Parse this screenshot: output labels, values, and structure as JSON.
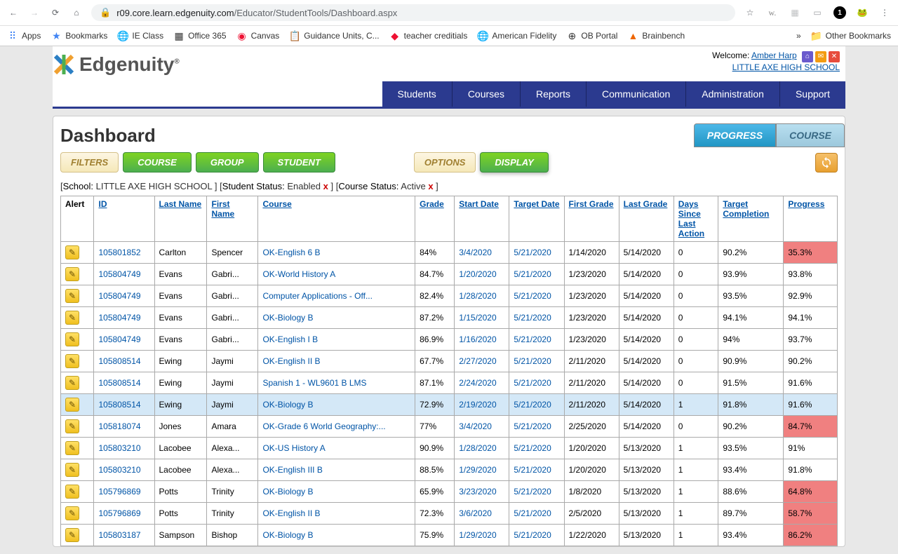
{
  "browser": {
    "url_host": "r09.core.learn.edgenuity.com",
    "url_path": "/Educator/StudentTools/Dashboard.aspx"
  },
  "bookmarks": [
    "Apps",
    "Bookmarks",
    "IE Class",
    "Office 365",
    "Canvas",
    "Guidance Units, C...",
    "teacher creditials",
    "American Fidelity",
    "OB Portal",
    "Brainbench"
  ],
  "other_bookmarks": "Other Bookmarks",
  "welcome": {
    "label": "Welcome:",
    "user": "Amber Harp",
    "school": "LITTLE AXE HIGH SCHOOL"
  },
  "nav": [
    "Students",
    "Courses",
    "Reports",
    "Communication",
    "Administration",
    "Support"
  ],
  "page_title": "Dashboard",
  "tabs": {
    "progress": "PROGRESS",
    "course": "COURSE"
  },
  "controls": {
    "filters": "FILTERS",
    "course": "COURSE",
    "group": "GROUP",
    "student": "STUDENT",
    "options": "OPTIONS",
    "display": "DISPLAY"
  },
  "filters_applied": [
    {
      "label": "School:",
      "value": "LITTLE AXE HIGH SCHOOL",
      "close": false
    },
    {
      "label": "Student Status:",
      "value": "Enabled",
      "close": true
    },
    {
      "label": "Course Status:",
      "value": "Active",
      "close": true
    }
  ],
  "columns": [
    "Alert",
    "ID",
    "Last Name",
    "First Name",
    "Course",
    "Grade",
    "Start Date",
    "Target Date",
    "First Grade",
    "Last Grade",
    "Days Since Last Action",
    "Target Completion",
    "Progress"
  ],
  "rows": [
    {
      "id": "105801852",
      "ln": "Carlton",
      "fn": "Spencer",
      "course": "OK-English 6 B",
      "grade": "84%",
      "sd": "3/4/2020",
      "td": "5/21/2020",
      "fg": "1/14/2020",
      "lg": "5/14/2020",
      "days": "0",
      "tc": "90.2%",
      "prog": "35.3%",
      "red": true
    },
    {
      "id": "105804749",
      "ln": "Evans",
      "fn": "Gabri...",
      "course": "OK-World History A",
      "grade": "84.7%",
      "sd": "1/20/2020",
      "td": "5/21/2020",
      "fg": "1/23/2020",
      "lg": "5/14/2020",
      "days": "0",
      "tc": "93.9%",
      "prog": "93.8%",
      "red": false
    },
    {
      "id": "105804749",
      "ln": "Evans",
      "fn": "Gabri...",
      "course": "Computer Applications - Off...",
      "grade": "82.4%",
      "sd": "1/28/2020",
      "td": "5/21/2020",
      "fg": "1/23/2020",
      "lg": "5/14/2020",
      "days": "0",
      "tc": "93.5%",
      "prog": "92.9%",
      "red": false
    },
    {
      "id": "105804749",
      "ln": "Evans",
      "fn": "Gabri...",
      "course": "OK-Biology B",
      "grade": "87.2%",
      "sd": "1/15/2020",
      "td": "5/21/2020",
      "fg": "1/23/2020",
      "lg": "5/14/2020",
      "days": "0",
      "tc": "94.1%",
      "prog": "94.1%",
      "red": false
    },
    {
      "id": "105804749",
      "ln": "Evans",
      "fn": "Gabri...",
      "course": "OK-English I B",
      "grade": "86.9%",
      "sd": "1/16/2020",
      "td": "5/21/2020",
      "fg": "1/23/2020",
      "lg": "5/14/2020",
      "days": "0",
      "tc": "94%",
      "prog": "93.7%",
      "red": false
    },
    {
      "id": "105808514",
      "ln": "Ewing",
      "fn": "Jaymi",
      "course": "OK-English II B",
      "grade": "67.7%",
      "sd": "2/27/2020",
      "td": "5/21/2020",
      "fg": "2/11/2020",
      "lg": "5/14/2020",
      "days": "0",
      "tc": "90.9%",
      "prog": "90.2%",
      "red": false
    },
    {
      "id": "105808514",
      "ln": "Ewing",
      "fn": "Jaymi",
      "course": "Spanish 1 - WL9601 B LMS",
      "grade": "87.1%",
      "sd": "2/24/2020",
      "td": "5/21/2020",
      "fg": "2/11/2020",
      "lg": "5/14/2020",
      "days": "0",
      "tc": "91.5%",
      "prog": "91.6%",
      "red": false
    },
    {
      "id": "105808514",
      "ln": "Ewing",
      "fn": "Jaymi",
      "course": "OK-Biology B",
      "grade": "72.9%",
      "sd": "2/19/2020",
      "td": "5/21/2020",
      "fg": "2/11/2020",
      "lg": "5/14/2020",
      "days": "1",
      "tc": "91.8%",
      "prog": "91.6%",
      "red": false,
      "hover": true
    },
    {
      "id": "105818074",
      "ln": "Jones",
      "fn": "Amara",
      "course": "OK-Grade 6 World Geography:...",
      "grade": "77%",
      "sd": "3/4/2020",
      "td": "5/21/2020",
      "fg": "2/25/2020",
      "lg": "5/14/2020",
      "days": "0",
      "tc": "90.2%",
      "prog": "84.7%",
      "red": true
    },
    {
      "id": "105803210",
      "ln": "Lacobee",
      "fn": "Alexa...",
      "course": "OK-US History A",
      "grade": "90.9%",
      "sd": "1/28/2020",
      "td": "5/21/2020",
      "fg": "1/20/2020",
      "lg": "5/13/2020",
      "days": "1",
      "tc": "93.5%",
      "prog": "91%",
      "red": false
    },
    {
      "id": "105803210",
      "ln": "Lacobee",
      "fn": "Alexa...",
      "course": "OK-English III B",
      "grade": "88.5%",
      "sd": "1/29/2020",
      "td": "5/21/2020",
      "fg": "1/20/2020",
      "lg": "5/13/2020",
      "days": "1",
      "tc": "93.4%",
      "prog": "91.8%",
      "red": false
    },
    {
      "id": "105796869",
      "ln": "Potts",
      "fn": "Trinity",
      "course": "OK-Biology B",
      "grade": "65.9%",
      "sd": "3/23/2020",
      "td": "5/21/2020",
      "fg": "1/8/2020",
      "lg": "5/13/2020",
      "days": "1",
      "tc": "88.6%",
      "prog": "64.8%",
      "red": true
    },
    {
      "id": "105796869",
      "ln": "Potts",
      "fn": "Trinity",
      "course": "OK-English II B",
      "grade": "72.3%",
      "sd": "3/6/2020",
      "td": "5/21/2020",
      "fg": "2/5/2020",
      "lg": "5/13/2020",
      "days": "1",
      "tc": "89.7%",
      "prog": "58.7%",
      "red": true
    },
    {
      "id": "105803187",
      "ln": "Sampson",
      "fn": "Bishop",
      "course": "OK-Biology B",
      "grade": "75.9%",
      "sd": "1/29/2020",
      "td": "5/21/2020",
      "fg": "1/22/2020",
      "lg": "5/13/2020",
      "days": "1",
      "tc": "93.4%",
      "prog": "86.2%",
      "red": true
    }
  ]
}
